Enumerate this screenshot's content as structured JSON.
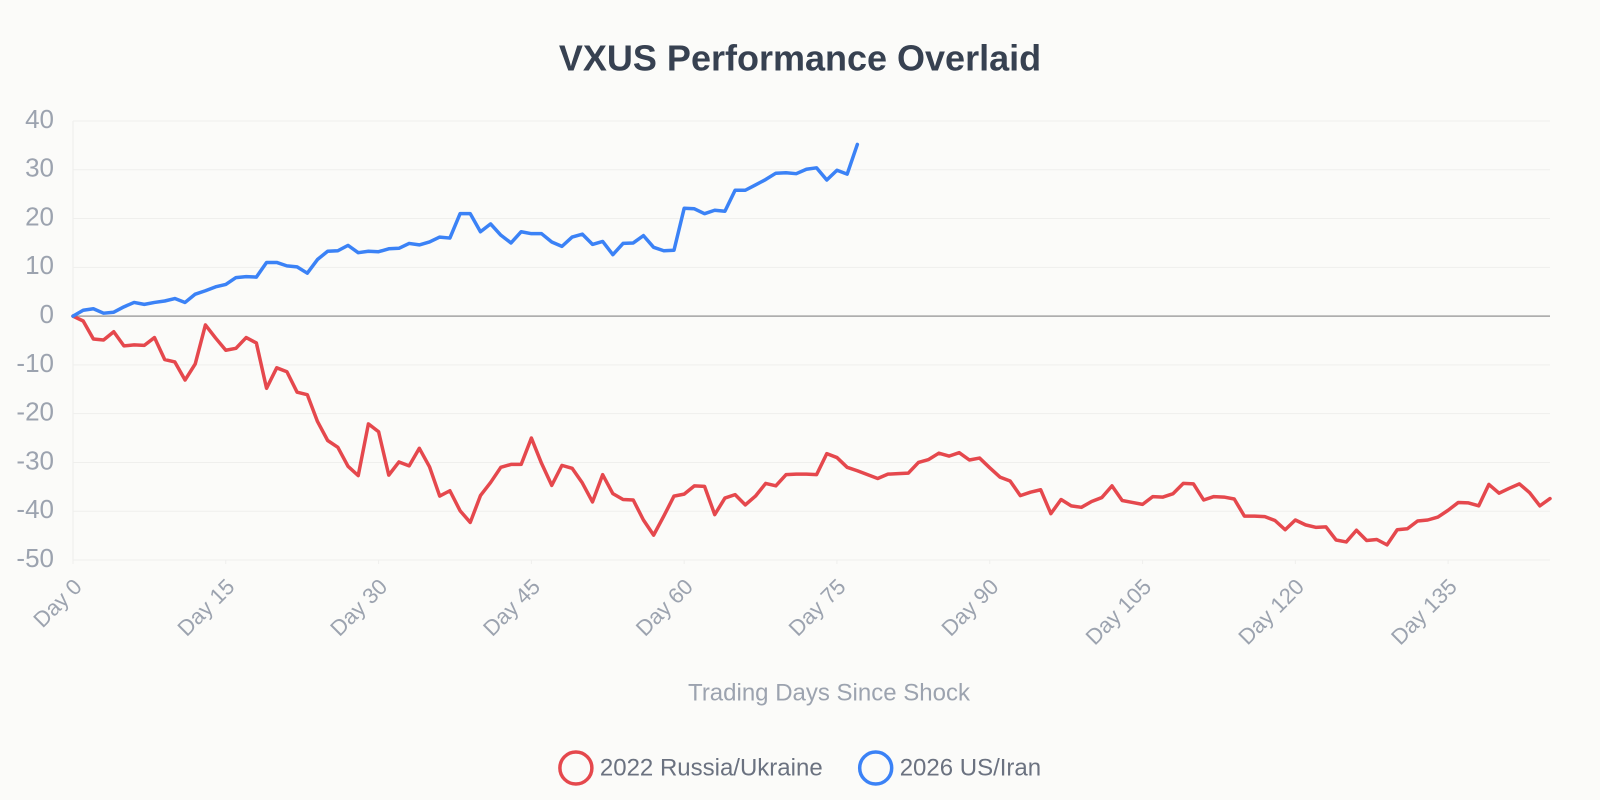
{
  "chart_data": {
    "type": "line",
    "title": "VXUS Performance Overlaid",
    "x_label": "Trading Days Since Shock",
    "x": [
      0,
      1,
      2,
      3,
      4,
      5,
      6,
      7,
      8,
      9,
      10,
      11,
      12,
      13,
      14,
      15,
      16,
      17,
      18,
      19,
      20,
      21,
      22,
      23,
      24,
      25,
      26,
      27,
      28,
      29,
      30,
      31,
      32,
      33,
      34,
      35,
      36,
      37,
      38,
      39,
      40,
      41,
      42,
      43,
      44,
      45,
      46,
      47,
      48,
      49,
      50,
      51,
      52,
      53,
      54,
      55,
      56,
      57,
      58,
      59,
      60,
      61,
      62,
      63,
      64,
      65,
      66,
      67,
      68,
      69,
      70,
      71,
      72,
      73,
      74,
      75,
      76,
      77,
      78,
      79,
      80,
      81,
      82,
      83,
      84,
      85,
      86,
      87,
      88,
      89,
      90,
      91,
      92,
      93,
      94,
      95,
      96,
      97,
      98,
      99,
      100,
      101,
      102,
      103,
      104,
      105,
      106,
      107,
      108,
      109,
      110,
      111,
      112,
      113,
      114,
      115,
      116,
      117,
      118,
      119,
      120,
      121,
      122,
      123,
      124,
      125,
      126,
      127,
      128,
      129,
      130,
      131,
      132,
      133,
      134,
      135,
      136,
      137,
      138,
      139,
      140,
      141,
      142,
      143,
      144,
      145
    ],
    "xlim": [
      0,
      145
    ],
    "xticks": [
      {
        "value": 0,
        "label": "Day 0"
      },
      {
        "value": 15,
        "label": "Day 15"
      },
      {
        "value": 30,
        "label": "Day 30"
      },
      {
        "value": 45,
        "label": "Day 45"
      },
      {
        "value": 60,
        "label": "Day 60"
      },
      {
        "value": 75,
        "label": "Day 75"
      },
      {
        "value": 90,
        "label": "Day 90"
      },
      {
        "value": 105,
        "label": "Day 105"
      },
      {
        "value": 120,
        "label": "Day 120"
      },
      {
        "value": 135,
        "label": "Day 135"
      }
    ],
    "ylim": [
      -50,
      40
    ],
    "yticks": [
      -50,
      -40,
      -30,
      -20,
      -10,
      0,
      10,
      20,
      30,
      40
    ],
    "grid": true,
    "legend": "bottom",
    "series": [
      {
        "name": "2022 Russia/Ukraine",
        "color": "#e5484d",
        "values": [
          0,
          -1,
          -4.7,
          -4.9,
          -3.2,
          -6.1,
          -5.9,
          -6.0,
          -4.4,
          -8.9,
          -9.4,
          -13.1,
          -9.8,
          -1.8,
          -4.5,
          -7.0,
          -6.6,
          -4.4,
          -5.5,
          -14.8,
          -10.6,
          -11.4,
          -15.6,
          -16.1,
          -21.6,
          -25.5,
          -26.9,
          -30.8,
          -32.7,
          -22.1,
          -23.7,
          -32.6,
          -29.9,
          -30.7,
          -27.1,
          -30.9,
          -36.9,
          -35.8,
          -39.9,
          -42.3,
          -36.8,
          -34.1,
          -31.0,
          -30.4,
          -30.4,
          -25.0,
          -30.2,
          -34.7,
          -30.6,
          -31.2,
          -34.2,
          -38.1,
          -32.5,
          -36.4,
          -37.6,
          -37.7,
          -41.8,
          -44.9,
          -41.0,
          -36.9,
          -36.5,
          -34.8,
          -34.9,
          -40.7,
          -37.3,
          -36.6,
          -38.7,
          -36.9,
          -34.3,
          -34.8,
          -32.5,
          -32.4,
          -32.4,
          -32.5,
          -28.2,
          -29.0,
          -31.0,
          -31.7,
          -32.5,
          -33.3,
          -32.4,
          -32.3,
          -32.2,
          -30.0,
          -29.4,
          -28.1,
          -28.7,
          -28.0,
          -29.5,
          -29.1,
          -31.1,
          -33.0,
          -33.8,
          -36.8,
          -36.1,
          -35.6,
          -40.5,
          -37.6,
          -38.9,
          -39.2,
          -38.0,
          -37.2,
          -34.8,
          -37.8,
          -38.2,
          -38.6,
          -37.0,
          -37.1,
          -36.4,
          -34.3,
          -34.4,
          -37.7,
          -37.0,
          -37.1,
          -37.5,
          -41.0,
          -41.0,
          -41.1,
          -41.9,
          -43.8,
          -41.8,
          -42.8,
          -43.3,
          -43.2,
          -45.9,
          -46.3,
          -43.9,
          -46.0,
          -45.8,
          -46.9,
          -43.8,
          -43.6,
          -42.0,
          -41.8,
          -41.2,
          -39.8,
          -38.2,
          -38.3,
          -38.9,
          -34.5,
          -36.3,
          -35.3,
          -34.4,
          -36.2,
          -38.9,
          -37.4
        ]
      },
      {
        "name": "2026 US/Iran",
        "color": "#3b82f6",
        "values": [
          0,
          1.2,
          1.5,
          0.6,
          0.8,
          1.9,
          2.8,
          2.4,
          2.8,
          3.1,
          3.6,
          2.8,
          4.5,
          5.2,
          6.0,
          6.5,
          7.9,
          8.1,
          8.0,
          11.0,
          11.0,
          10.3,
          10.1,
          8.8,
          11.6,
          13.3,
          13.4,
          14.5,
          13.0,
          13.3,
          13.2,
          13.8,
          13.9,
          14.9,
          14.6,
          15.2,
          16.2,
          16.0,
          21.0,
          21.0,
          17.3,
          18.9,
          16.6,
          15.0,
          17.3,
          16.9,
          16.9,
          15.2,
          14.3,
          16.2,
          16.8,
          14.7,
          15.3,
          12.6,
          14.9,
          15.0,
          16.5,
          14.1,
          13.4,
          13.5,
          22.1,
          22.0,
          21.0,
          21.7,
          21.5,
          25.8,
          25.8,
          26.9,
          28.0,
          29.3,
          29.4,
          29.2,
          30.1,
          30.4,
          27.9,
          29.9,
          29.1,
          35.2,
          null,
          null,
          null,
          null,
          null,
          null,
          null,
          null,
          null,
          null,
          null,
          null,
          null,
          null,
          null,
          null,
          null,
          null,
          null,
          null,
          null,
          null,
          null,
          null,
          null,
          null,
          null,
          null,
          null,
          null,
          null,
          null,
          null,
          null,
          null,
          null,
          null,
          null,
          null,
          null,
          null,
          null,
          null,
          null,
          null,
          null,
          null,
          null,
          null,
          null,
          null,
          null,
          null,
          null,
          null,
          null,
          null,
          null,
          null,
          null,
          null,
          null,
          null,
          null,
          null,
          null,
          null,
          null
        ]
      }
    ]
  }
}
